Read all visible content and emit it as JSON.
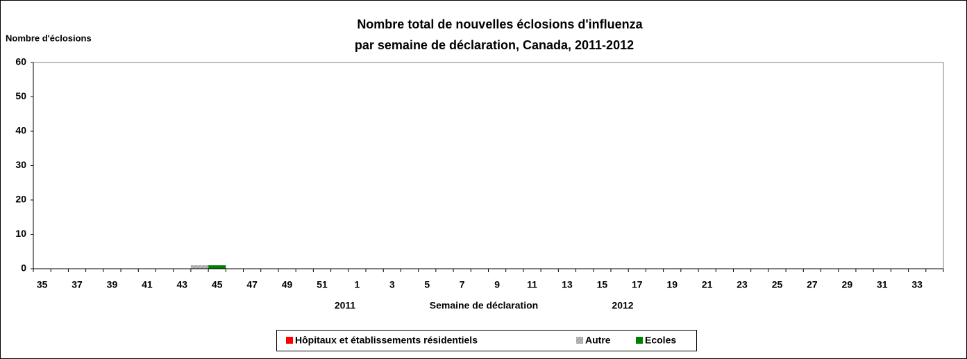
{
  "chart_data": {
    "type": "bar",
    "stacked": true,
    "title": "Nombre total de nouvelles éclosions d'influenza",
    "subtitle": "par semaine de déclaration, Canada, 2011-2012",
    "y_label": "Nombre d'éclosions",
    "x_label": "Semaine de déclaration",
    "year_labels": [
      "2011",
      "2012"
    ],
    "categories": [
      "35",
      null,
      "37",
      null,
      "39",
      null,
      "41",
      null,
      "43",
      null,
      "45",
      null,
      "47",
      null,
      "49",
      null,
      "51",
      null,
      "1",
      null,
      "3",
      null,
      "5",
      null,
      "7",
      null,
      "9",
      null,
      "11",
      null,
      "13",
      null,
      "15",
      null,
      "17",
      null,
      "19",
      null,
      "21",
      null,
      "23",
      null,
      "25",
      null,
      "27",
      null,
      "29",
      null,
      "31",
      null,
      "33",
      null
    ],
    "series": [
      {
        "name": "Hôpitaux et établissements résidentiels",
        "color": "#ff0000",
        "values": [
          0,
          0,
          0,
          0,
          0,
          0,
          0,
          0,
          0,
          0,
          0,
          0,
          0,
          0,
          0,
          0,
          0,
          0,
          0,
          0,
          0,
          0,
          0,
          0,
          0,
          0,
          0,
          0,
          0,
          0,
          0,
          0,
          0,
          0,
          0,
          0,
          0,
          0,
          0,
          0,
          0,
          0,
          0,
          0,
          0,
          0,
          0,
          0,
          0,
          0,
          0,
          0
        ]
      },
      {
        "name": "Autre",
        "color": "#a6a6a6",
        "values": [
          0,
          0,
          0,
          0,
          0,
          0,
          0,
          0,
          0,
          1,
          0,
          0,
          0,
          0,
          0,
          0,
          0,
          0,
          0,
          0,
          0,
          0,
          0,
          0,
          0,
          0,
          0,
          0,
          0,
          0,
          0,
          0,
          0,
          0,
          0,
          0,
          0,
          0,
          0,
          0,
          0,
          0,
          0,
          0,
          0,
          0,
          0,
          0,
          0,
          0,
          0,
          0
        ]
      },
      {
        "name": "Ecoles",
        "color": "#008000",
        "values": [
          0,
          0,
          0,
          0,
          0,
          0,
          0,
          0,
          0,
          0,
          1,
          0,
          0,
          0,
          0,
          0,
          0,
          0,
          0,
          0,
          0,
          0,
          0,
          0,
          0,
          0,
          0,
          0,
          0,
          0,
          0,
          0,
          0,
          0,
          0,
          0,
          0,
          0,
          0,
          0,
          0,
          0,
          0,
          0,
          0,
          0,
          0,
          0,
          0,
          0,
          0,
          0
        ]
      }
    ],
    "ylim": [
      0,
      60
    ],
    "yticks": [
      0,
      10,
      20,
      30,
      40,
      50,
      60
    ],
    "grid": false,
    "legend": "bottom"
  }
}
